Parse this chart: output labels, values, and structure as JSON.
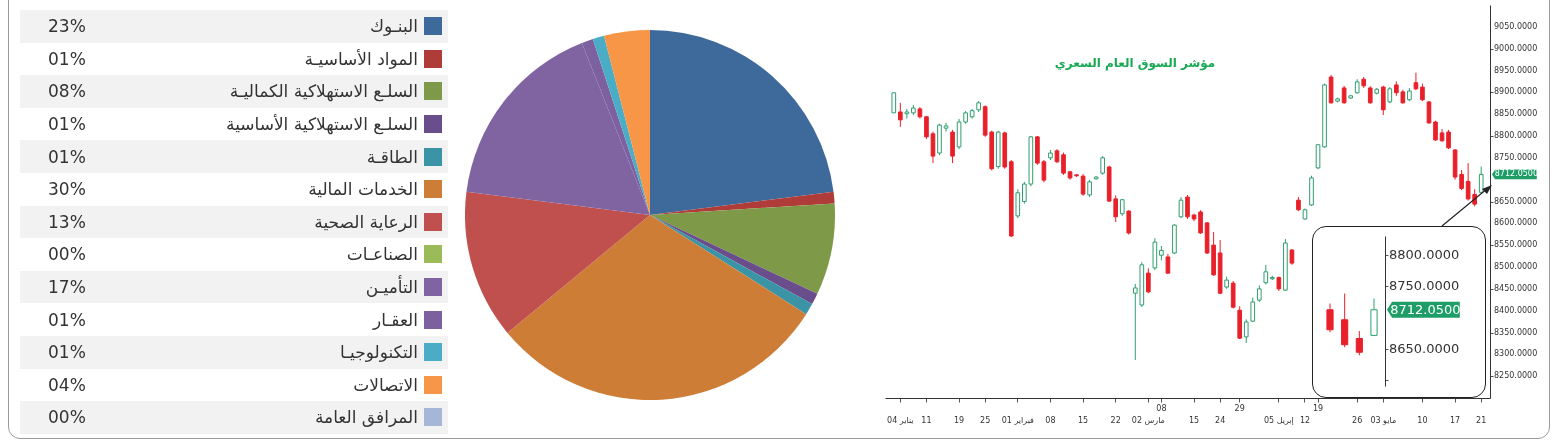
{
  "chart_data": [
    {
      "type": "pie",
      "legend": "left",
      "categories": [
        "البنـوك",
        "المواد الأساسيـة",
        "السلـع الاستهلاكية الكماليـة",
        "السلـع الاستهلاكية الأساسية",
        "الطاقـة",
        "الخدمات المالية",
        "الرعاية الصحية",
        "الصناعـات",
        "التأميـن",
        "العقـار",
        "التكنولوجيـا",
        "الاتصالات",
        "المرافق العامة"
      ],
      "values": [
        23,
        1,
        8,
        1,
        1,
        30,
        13,
        0,
        17,
        1,
        1,
        4,
        0
      ],
      "value_labels": [
        "23%",
        "01%",
        "08%",
        "01%",
        "01%",
        "30%",
        "13%",
        "00%",
        "17%",
        "01%",
        "01%",
        "04%",
        "00%"
      ],
      "colors": [
        "#3e6a9b",
        "#b03c3a",
        "#7e9a48",
        "#6a4e8c",
        "#3a94a6",
        "#cd7d36",
        "#c0504d",
        "#9bbb59",
        "#8064a2",
        "#7d60a0",
        "#4bacc6",
        "#f79646",
        "#a5b6d6"
      ]
    },
    {
      "type": "candlestick",
      "title": "مؤشر السوق العام السعري",
      "categories": [
        null,
        "يناير 04",
        null,
        null,
        null,
        "11",
        null,
        null,
        null,
        null,
        "19",
        null,
        null,
        null,
        "25",
        null,
        null,
        null,
        null,
        "فبراير 01",
        null,
        null,
        null,
        null,
        "08",
        null,
        null,
        null,
        null,
        "15",
        null,
        null,
        null,
        null,
        "22",
        null,
        null,
        null,
        null,
        "مارس 02",
        null,
        "08",
        null,
        null,
        null,
        null,
        "15",
        null,
        null,
        null,
        "24",
        null,
        null,
        "29",
        null,
        null,
        null,
        null,
        null,
        "إبريل 05",
        null,
        null,
        null,
        "12",
        null,
        "19",
        null,
        null,
        null,
        null,
        null,
        "26",
        null,
        null,
        null,
        "مايو 03",
        null,
        null,
        null,
        null,
        null,
        "10",
        null,
        null,
        null,
        null,
        "17",
        null,
        null,
        null,
        "21"
      ],
      "ohlc": [
        [
          8853,
          8899,
          8853,
          8899
        ],
        [
          8855,
          8876,
          8821,
          8837
        ],
        [
          8851,
          8862,
          8840,
          8855
        ],
        [
          8853,
          8871,
          8848,
          8864
        ],
        [
          8862,
          8866,
          8840,
          8844
        ],
        [
          8844,
          8846,
          8793,
          8798
        ],
        [
          8805,
          8810,
          8738,
          8754
        ],
        [
          8761,
          8828,
          8756,
          8825
        ],
        [
          8818,
          8830,
          8810,
          8823
        ],
        [
          8809,
          8814,
          8738,
          8754
        ],
        [
          8775,
          8839,
          8770,
          8832
        ],
        [
          8832,
          8857,
          8828,
          8853
        ],
        [
          8844,
          8862,
          8840,
          8858
        ],
        [
          8860,
          8880,
          8855,
          8876
        ],
        [
          8867,
          8870,
          8798,
          8802
        ],
        [
          8809,
          8812,
          8721,
          8725
        ],
        [
          8730,
          8812,
          8725,
          8809
        ],
        [
          8807,
          8810,
          8725,
          8729
        ],
        [
          8741,
          8745,
          8569,
          8571
        ],
        [
          8617,
          8678,
          8612,
          8670
        ],
        [
          8650,
          8695,
          8645,
          8690
        ],
        [
          8690,
          8800,
          8685,
          8798
        ],
        [
          8798,
          8800,
          8734,
          8738
        ],
        [
          8741,
          8745,
          8694,
          8699
        ],
        [
          8750,
          8768,
          8745,
          8761
        ],
        [
          8766,
          8770,
          8738,
          8741
        ],
        [
          8757,
          8762,
          8711,
          8715
        ],
        [
          8718,
          8720,
          8700,
          8704
        ],
        [
          8711,
          8713,
          8706,
          8709
        ],
        [
          8708,
          8713,
          8663,
          8667
        ],
        [
          8665,
          8700,
          8660,
          8695
        ],
        [
          8702,
          8708,
          8700,
          8706
        ],
        [
          8715,
          8754,
          8711,
          8750
        ],
        [
          8729,
          8732,
          8649,
          8651
        ],
        [
          8656,
          8664,
          8603,
          8615
        ],
        [
          8622,
          8656,
          8617,
          8654
        ],
        [
          8628,
          8630,
          8574,
          8578
        ],
        [
          8440,
          8461,
          8287,
          8452
        ],
        [
          8413,
          8511,
          8408,
          8505
        ],
        [
          8486,
          8497,
          8440,
          8443
        ],
        [
          8498,
          8566,
          8493,
          8557
        ],
        [
          8527,
          8548,
          8515,
          8538
        ],
        [
          8523,
          8530,
          8484,
          8486
        ],
        [
          8532,
          8598,
          8530,
          8596
        ],
        [
          8615,
          8660,
          8612,
          8653
        ],
        [
          8660,
          8665,
          8610,
          8615
        ],
        [
          8619,
          8622,
          8605,
          8610
        ],
        [
          8626,
          8630,
          8576,
          8578
        ],
        [
          8601,
          8603,
          8530,
          8532
        ],
        [
          8550,
          8580,
          8480,
          8482
        ],
        [
          8532,
          8562,
          8438,
          8440
        ],
        [
          8454,
          8478,
          8450,
          8470
        ],
        [
          8463,
          8468,
          8405,
          8408
        ],
        [
          8401,
          8410,
          8335,
          8337
        ],
        [
          8340,
          8380,
          8326,
          8374
        ],
        [
          8376,
          8430,
          8374,
          8420
        ],
        [
          8424,
          8458,
          8420,
          8450
        ],
        [
          8464,
          8505,
          8460,
          8489
        ],
        [
          8473,
          8480,
          8470,
          8476
        ],
        [
          8476,
          8478,
          8445,
          8450
        ],
        [
          8447,
          8564,
          8445,
          8555
        ],
        [
          8539,
          8541,
          8505,
          8509
        ],
        [
          8653,
          8660,
          8628,
          8631
        ],
        [
          8610,
          8634,
          8608,
          8631
        ],
        [
          8642,
          8709,
          8640,
          8704
        ],
        [
          8727,
          8780,
          8724,
          8780
        ],
        [
          8775,
          8920,
          8773,
          8917
        ],
        [
          8935,
          8940,
          8874,
          8876
        ],
        [
          8880,
          8888,
          8877,
          8885
        ],
        [
          8910,
          8915,
          8874,
          8876
        ],
        [
          8887,
          8894,
          8885,
          8892
        ],
        [
          8899,
          8930,
          8897,
          8924
        ],
        [
          8930,
          8935,
          8910,
          8915
        ],
        [
          8910,
          8914,
          8874,
          8876
        ],
        [
          8898,
          8910,
          8895,
          8907
        ],
        [
          8912,
          8915,
          8848,
          8860
        ],
        [
          8878,
          8912,
          8875,
          8908
        ],
        [
          8917,
          8925,
          8892,
          8899
        ],
        [
          8901,
          8906,
          8874,
          8876
        ],
        [
          8883,
          8910,
          8880,
          8903
        ],
        [
          8922,
          8945,
          8905,
          8908
        ],
        [
          8912,
          8920,
          8880,
          8883
        ],
        [
          8878,
          8880,
          8828,
          8830
        ],
        [
          8832,
          8835,
          8789,
          8791
        ],
        [
          8807,
          8816,
          8787,
          8789
        ],
        [
          8809,
          8814,
          8770,
          8773
        ],
        [
          8768,
          8770,
          8700,
          8706
        ],
        [
          8712,
          8722,
          8676,
          8680
        ],
        [
          8696,
          8738,
          8652,
          8656
        ],
        [
          8666,
          8678,
          8639,
          8644
        ],
        [
          8671,
          8730,
          8671,
          8712.05
        ]
      ],
      "ylim": [
        8200,
        9100
      ],
      "yticks": [
        {
          "value": 8250,
          "label": "8250.0000"
        },
        {
          "value": 8300,
          "label": "8300.0000"
        },
        {
          "value": 8350,
          "label": "8350.0000"
        },
        {
          "value": 8400,
          "label": "8400.0000"
        },
        {
          "value": 8450,
          "label": "8450.0000"
        },
        {
          "value": 8500,
          "label": "8500.0000"
        },
        {
          "value": 8550,
          "label": "8550.0000"
        },
        {
          "value": 8600,
          "label": "8600.0000"
        },
        {
          "value": 8650,
          "label": "8650.0000"
        },
        {
          "value": 8750,
          "label": "8750.0000"
        },
        {
          "value": 8800,
          "label": "8800.0000"
        },
        {
          "value": 8850,
          "label": "8850.0000"
        },
        {
          "value": 8900,
          "label": "8900.0000"
        },
        {
          "value": 8950,
          "label": "8950.0000"
        },
        {
          "value": 9000,
          "label": "9000.0000"
        },
        {
          "value": 9050,
          "label": "9050.0000"
        }
      ],
      "annotations": [
        "8712.0500"
      ]
    },
    {
      "type": "candlestick",
      "tick_labels": "y",
      "categories": [
        null,
        null,
        null,
        null
      ],
      "ohlc": [
        [
          8712,
          8722,
          8676,
          8680
        ],
        [
          8696,
          8738,
          8652,
          8656
        ],
        [
          8666,
          8678,
          8639,
          8644
        ],
        [
          8671,
          8730,
          8671,
          8712.05
        ]
      ],
      "ylim": [
        8590,
        8830
      ],
      "yticks": [
        {
          "value": 8600,
          "label": null
        },
        {
          "value": 8650,
          "label": "8650.0000"
        },
        {
          "value": 8750,
          "label": "8750.0000"
        },
        {
          "value": 8800,
          "label": "8800.0000"
        }
      ],
      "annotations": [
        "8712.0500"
      ]
    }
  ]
}
